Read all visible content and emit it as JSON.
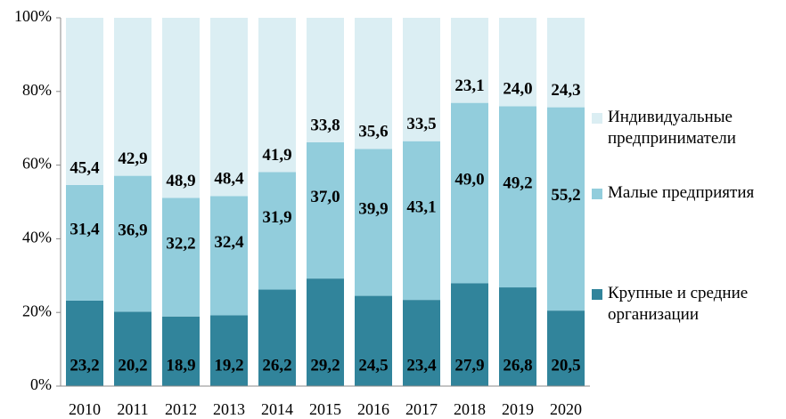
{
  "chart_data": {
    "type": "stacked_bar",
    "categories": [
      "2010",
      "2011",
      "2012",
      "2013",
      "2014",
      "2015",
      "2016",
      "2017",
      "2018",
      "2019",
      "2020"
    ],
    "series": [
      {
        "name": "Крупные и средние организации",
        "color": "#31849b",
        "values": [
          23.2,
          20.2,
          18.9,
          19.2,
          26.2,
          29.2,
          24.5,
          23.4,
          27.9,
          26.8,
          20.5
        ],
        "value_labels": [
          "23,2",
          "20,2",
          "18,9",
          "19,2",
          "26,2",
          "29,2",
          "24,5",
          "23,4",
          "27,9",
          "26,8",
          "20,5"
        ]
      },
      {
        "name": "Малые предприятия",
        "color": "#92cddc",
        "values": [
          31.4,
          36.9,
          32.2,
          32.4,
          31.9,
          37.0,
          39.9,
          43.1,
          49.0,
          49.2,
          55.2
        ],
        "value_labels": [
          "31,4",
          "36,9",
          "32,2",
          "32,4",
          "31,9",
          "37,0",
          "39,9",
          "43,1",
          "49,0",
          "49,2",
          "55,2"
        ]
      },
      {
        "name": "Индивидуальные предприниматели",
        "color": "#dbeef3",
        "values": [
          45.4,
          42.9,
          48.9,
          48.4,
          41.9,
          33.8,
          35.6,
          33.5,
          23.1,
          24.0,
          24.3
        ],
        "value_labels": [
          "45,4",
          "42,9",
          "48,9",
          "48,4",
          "41,9",
          "33,8",
          "35,6",
          "33,5",
          "23,1",
          "24,0",
          "24,3"
        ]
      }
    ],
    "ylim": [
      0,
      100
    ],
    "yticks": [
      {
        "value": 0,
        "label": "0%"
      },
      {
        "value": 20,
        "label": "20%"
      },
      {
        "value": 40,
        "label": "40%"
      },
      {
        "value": 60,
        "label": "60%"
      },
      {
        "value": 80,
        "label": "80%"
      },
      {
        "value": 100,
        "label": "100%"
      }
    ],
    "grid": false
  }
}
